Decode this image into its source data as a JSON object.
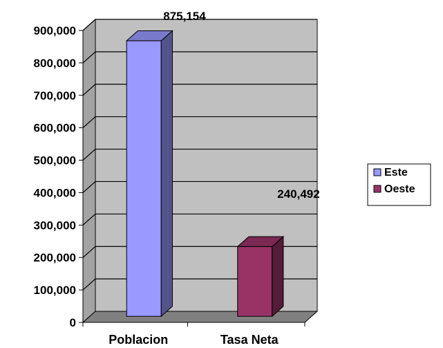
{
  "chart_data": {
    "type": "bar",
    "categories": [
      "Poblacion",
      "Tasa Neta"
    ],
    "series": [
      {
        "name": "Este",
        "values": [
          875154,
          null
        ],
        "color": "#9999ff"
      },
      {
        "name": "Oeste",
        "values": [
          null,
          240492
        ],
        "color": "#993366"
      }
    ],
    "data_labels": [
      "875,154",
      "240,492"
    ],
    "y_tick_labels": [
      "0",
      "100,000",
      "200,000",
      "300,000",
      "400,000",
      "500,000",
      "600,000",
      "700,000",
      "800,000",
      "900,000"
    ],
    "ylim": [
      0,
      900000
    ],
    "grid": true,
    "legend_position": "right",
    "style": "3d-column",
    "colors": {
      "wall": "#c0c0c0",
      "floor": "#808080",
      "gridline": "#000000"
    }
  }
}
